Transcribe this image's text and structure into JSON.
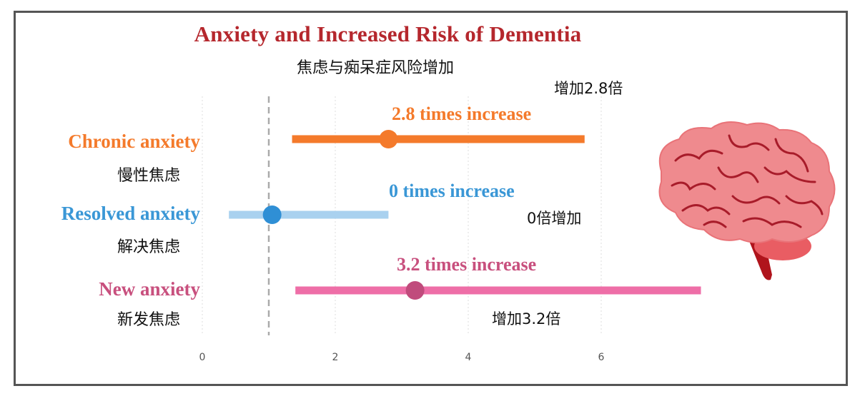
{
  "chart_data": {
    "type": "forest",
    "title": "Anxiety and Increased Risk of Dementia",
    "subtitle": "焦虑与痴呆症风险增加",
    "xlim": [
      0,
      7.5
    ],
    "xticks": [
      0,
      2,
      4,
      6
    ],
    "reference_line": 1,
    "grid": true,
    "rows": [
      {
        "label": "Chronic anxiety",
        "label_cn": "慢性焦虑",
        "estimate": 2.8,
        "lower": 1.35,
        "upper": 5.75,
        "annotation": "2.8 times increase",
        "annotation_cn": "增加2.8倍",
        "color": "#f47a2b",
        "bar_color": "#f47a2b",
        "dot_color": "#f47a2b"
      },
      {
        "label": "Resolved anxiety",
        "label_cn": "解决焦虑",
        "estimate": 1.05,
        "lower": 0.4,
        "upper": 2.8,
        "annotation": "0 times increase",
        "annotation_cn": "0倍增加",
        "color": "#3a97d6",
        "bar_color": "#a9d1ef",
        "dot_color": "#2f8fd5"
      },
      {
        "label": "New anxiety",
        "label_cn": "新发焦虑",
        "estimate": 3.2,
        "lower": 1.4,
        "upper": 7.5,
        "annotation": "3.2 times increase",
        "annotation_cn": "增加3.2倍",
        "color": "#c8507e",
        "bar_color": "#ee6ea7",
        "dot_color": "#c04b7c"
      }
    ]
  },
  "colors": {
    "title": "#b5272d",
    "frame": "#555555",
    "brain": "#ef8a8e",
    "brain_lines": "#a81c2a",
    "stem": "#b0141c"
  },
  "icons": {
    "brain": "brain-icon"
  }
}
